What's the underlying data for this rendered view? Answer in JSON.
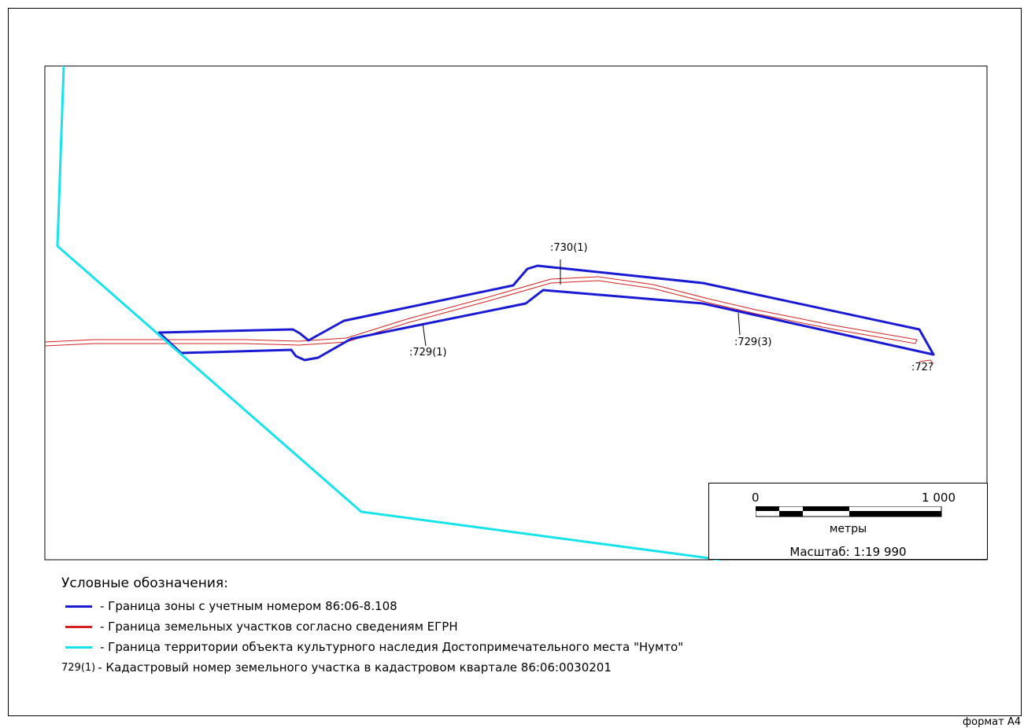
{
  "colors": {
    "zone": "#1a1ad4",
    "parcel": "#d42020",
    "heritage": "#19e3ea",
    "frame": "#000000"
  },
  "map": {
    "labels": {
      "p730_1": ":730(1)",
      "p729_1": ":729(1)",
      "p729_3": ":729(3)",
      "p72x": ":72?"
    }
  },
  "scale_bar": {
    "start": "0",
    "end": "1 000",
    "units": "метры",
    "scale": "Масштаб: 1:19 990"
  },
  "legend": {
    "title": "Условные обозначения:",
    "items": [
      {
        "color": "#1a1ad4",
        "text": "- Граница зоны с учетным номером 86:06-8.108"
      },
      {
        "color": "#d42020",
        "text": "- Граница земельных участков согласно сведениям ЕГРН"
      },
      {
        "color": "#19e3ea",
        "text": "- Граница территории объекта культурного наследия Достопримечательного места \"Нумто\""
      }
    ],
    "code_sample": "729(1)",
    "code_text": "- Кадастровый номер земельного участка в кадастровом квартале 86:06:0030201"
  },
  "format_label": "формат А4"
}
